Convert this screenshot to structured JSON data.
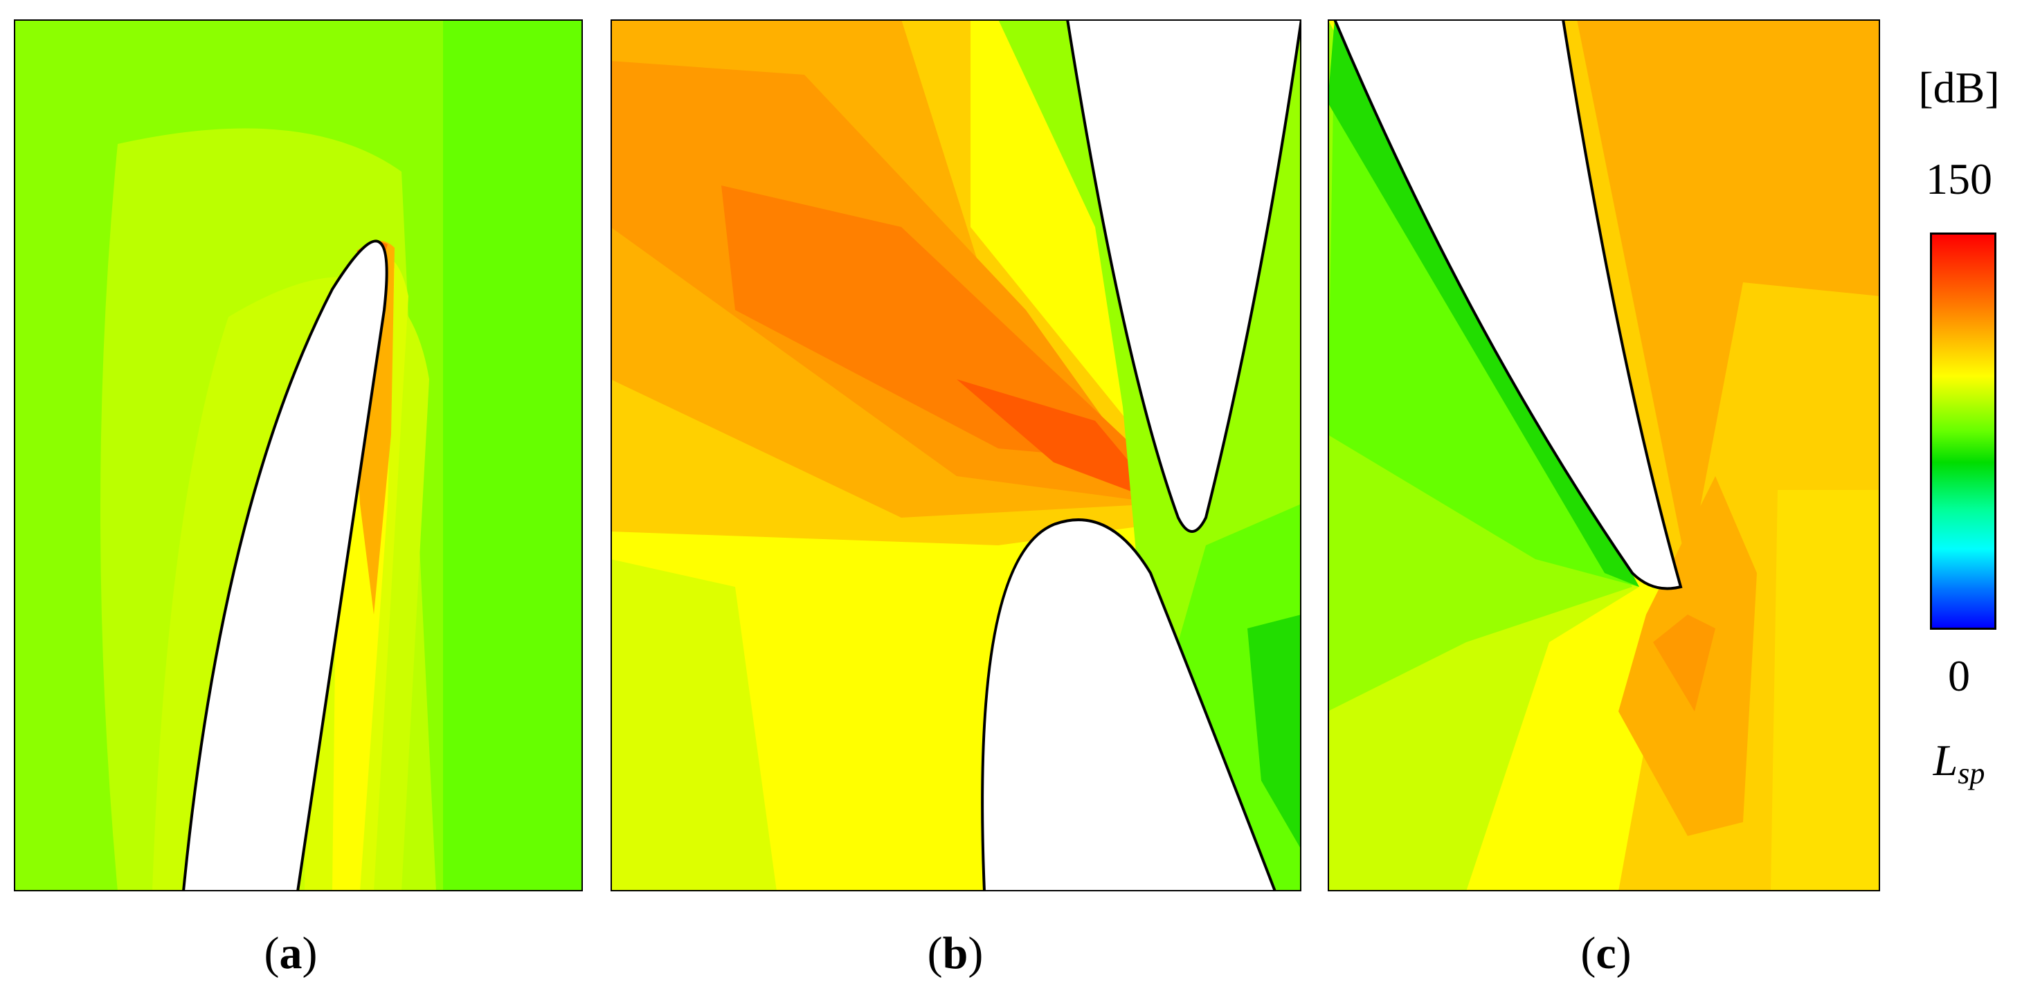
{
  "panels": [
    {
      "id": "a",
      "label": "a"
    },
    {
      "id": "b",
      "label": "b"
    },
    {
      "id": "c",
      "label": "c"
    }
  ],
  "colorbar": {
    "unit": "[dB]",
    "max": "150",
    "min": "0",
    "variable_main": "L",
    "variable_sub": "sp",
    "colors": [
      "#ff0000",
      "#ff7a00",
      "#ffff00",
      "#66ff00",
      "#00dd00",
      "#00ff99",
      "#00ffff",
      "#0077ff",
      "#0000ff"
    ]
  },
  "colors": {
    "red": "#ff3a00",
    "orange_red": "#ff6a00",
    "orange": "#ffa000",
    "yellow_orange": "#ffd000",
    "yellow": "#ffff00",
    "yellow_green": "#ccff00",
    "light_green": "#99ff00",
    "green": "#66ff00",
    "deep_green": "#22dd00",
    "blade": "#ffffff",
    "outline": "#000000"
  }
}
